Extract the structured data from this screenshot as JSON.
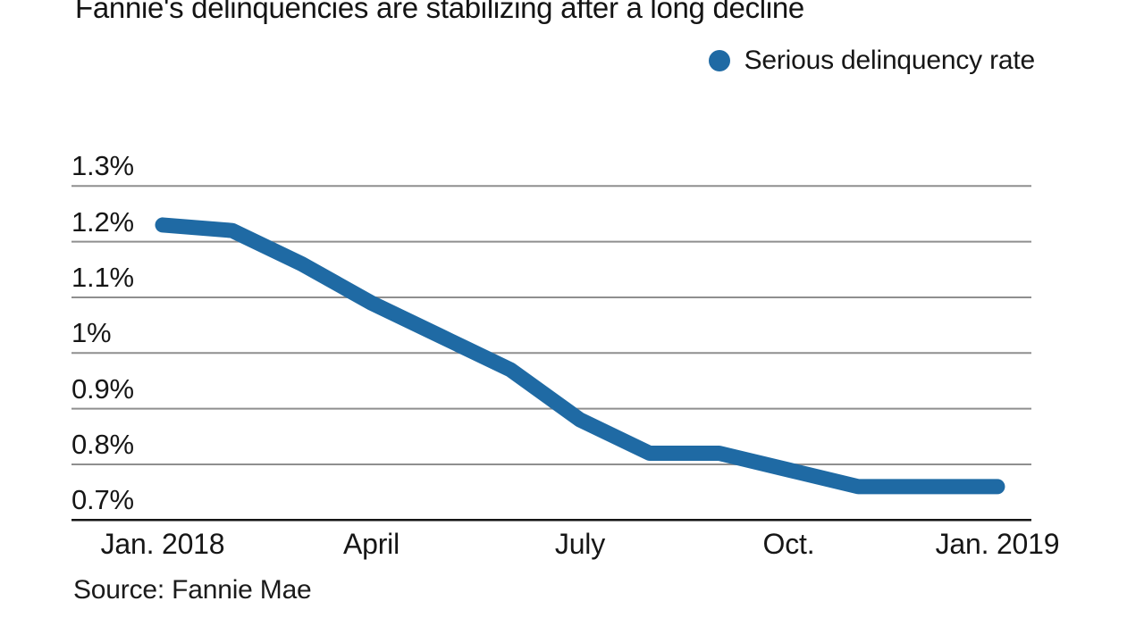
{
  "header": {
    "title": "Fannie's delinquencies are stabilizing after a long decline"
  },
  "legend": {
    "label": "Serious delinquency rate",
    "marker_color": "#1f6aa4"
  },
  "footer": {
    "source": "Source: Fannie Mae"
  },
  "colors": {
    "line": "#1f6aa4",
    "gridline": "#8f8f8f",
    "axis": "#141414",
    "text": "#161616",
    "background": "#ffffff"
  },
  "chart_data": {
    "type": "line",
    "title": "Fannie's delinquencies are stabilizing after a long decline",
    "xlabel": "",
    "ylabel": "Serious delinquency rate (%)",
    "ylim": [
      0.7,
      1.3
    ],
    "grid": "horizontal",
    "legend_position": "top-right",
    "x": [
      "Jan. 2018",
      "Feb. 2018",
      "March 2018",
      "April 2018",
      "May 2018",
      "June 2018",
      "July 2018",
      "Aug. 2018",
      "Sept. 2018",
      "Oct. 2018",
      "Nov. 2018",
      "Dec. 2018",
      "Jan. 2019"
    ],
    "series": [
      {
        "name": "Serious delinquency rate",
        "color": "#1f6aa4",
        "values": [
          1.23,
          1.22,
          1.16,
          1.09,
          1.03,
          0.97,
          0.88,
          0.82,
          0.82,
          0.79,
          0.76,
          0.76,
          0.76
        ]
      }
    ],
    "y_ticks": [
      {
        "value": 1.3,
        "label": "1.3%"
      },
      {
        "value": 1.2,
        "label": "1.2%"
      },
      {
        "value": 1.1,
        "label": "1.1%"
      },
      {
        "value": 1.0,
        "label": "1%"
      },
      {
        "value": 0.9,
        "label": "0.9%"
      },
      {
        "value": 0.8,
        "label": "0.8%"
      },
      {
        "value": 0.7,
        "label": "0.7%"
      }
    ],
    "x_ticks": [
      {
        "index": 0,
        "label": "Jan. 2018"
      },
      {
        "index": 3,
        "label": "April"
      },
      {
        "index": 6,
        "label": "July"
      },
      {
        "index": 9,
        "label": "Oct."
      },
      {
        "index": 12,
        "label": "Jan. 2019"
      }
    ],
    "source": "Source: Fannie Mae"
  }
}
